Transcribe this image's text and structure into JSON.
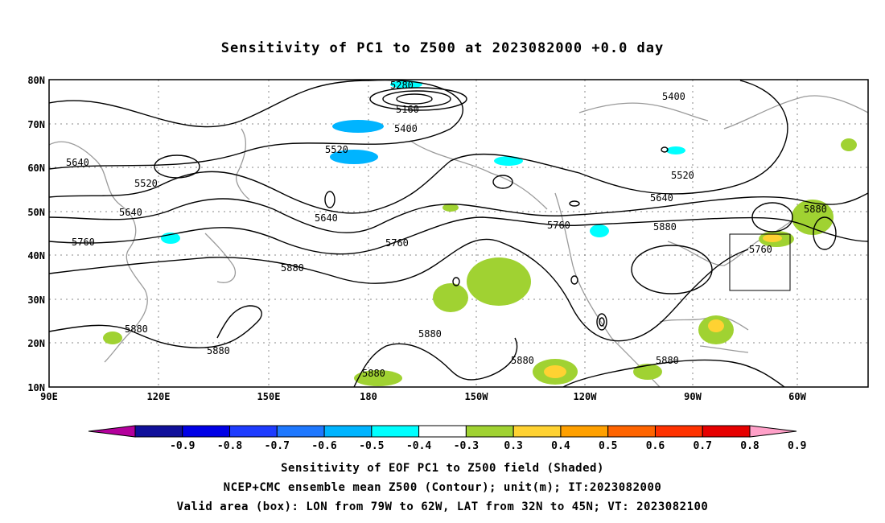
{
  "title": "Sensitivity of PC1 to Z500 at 2023082000 +0.0 day",
  "map": {
    "lat_labels": [
      "80N",
      "70N",
      "60N",
      "50N",
      "40N",
      "30N",
      "20N",
      "10N"
    ],
    "lon_labels": [
      "90E",
      "120E",
      "150E",
      "180",
      "150W",
      "120W",
      "90W",
      "60W"
    ],
    "lat_range": [
      10,
      80
    ],
    "lon_range_east": [
      90,
      310
    ],
    "contour_labels": [
      "5280",
      "5160",
      "5400",
      "5520",
      "5400",
      "5640",
      "5520",
      "5640",
      "5760",
      "5640",
      "5520",
      "5640",
      "5880",
      "5760",
      "5880",
      "5760",
      "5760",
      "5880",
      "5880",
      "5880",
      "5880",
      "5880",
      "5880",
      "5880"
    ],
    "valid_box": {
      "lon_west": -79,
      "lon_east": -62,
      "lat_south": 32,
      "lat_north": 45
    },
    "colors": {
      "grid": "#888888",
      "coast": "#9a9a9a",
      "contour": "#000000"
    }
  },
  "colorbar": {
    "labels": [
      "-0.9",
      "-0.8",
      "-0.7",
      "-0.6",
      "-0.5",
      "-0.4",
      "-0.3",
      "0.3",
      "0.4",
      "0.5",
      "0.6",
      "0.7",
      "0.8",
      "0.9"
    ],
    "colors": [
      "#b4009c",
      "#10109a",
      "#0000e6",
      "#1e3cff",
      "#1e78ff",
      "#00b4ff",
      "#00ffff",
      "#ffffff",
      "#a0d232",
      "#ffd232",
      "#ffa000",
      "#ff6400",
      "#ff3200",
      "#e60000",
      "#ffa0c8"
    ]
  },
  "captions": {
    "line1": "Sensitivity of EOF PC1 to Z500 field (Shaded)",
    "line2": "NCEP+CMC ensemble mean Z500 (Contour); unit(m); IT:2023082000",
    "line3": "Valid area (box): LON from 79W to 62W, LAT from 32N to 45N; VT: 2023082100"
  }
}
